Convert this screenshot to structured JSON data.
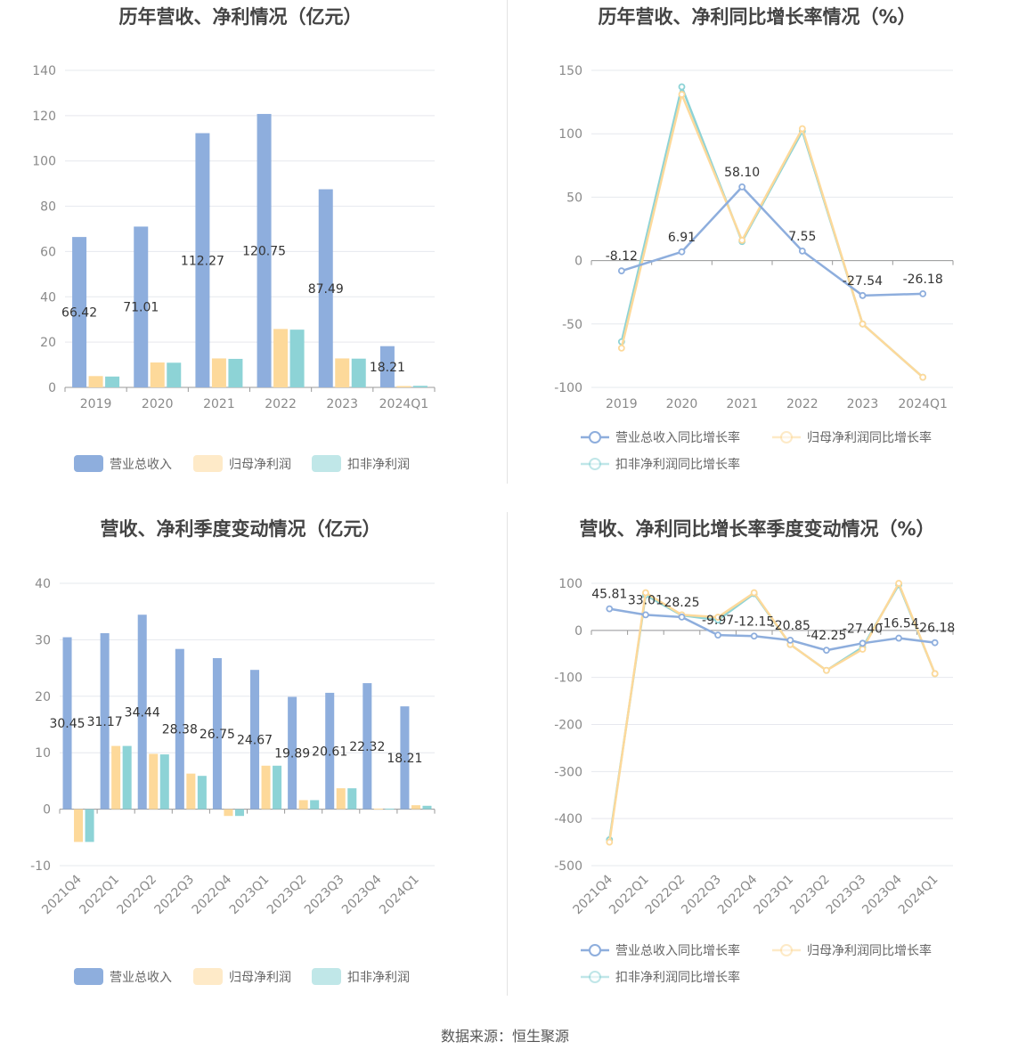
{
  "source": "数据来源：恒生聚源",
  "colors": {
    "revenue": "#8eaedd",
    "net": "#fdd99a",
    "net_ex": "#8dd3d6"
  },
  "chart_data": [
    {
      "id": "annual_amount",
      "type": "bar",
      "title": "历年营收、净利情况（亿元）",
      "categories": [
        "2019",
        "2020",
        "2021",
        "2022",
        "2023",
        "2024Q1"
      ],
      "ylim": [
        0,
        140
      ],
      "yticks": [
        0,
        20,
        40,
        60,
        80,
        100,
        120,
        140
      ],
      "grid": true,
      "legend_position": "bottom",
      "series": [
        {
          "name": "营业总收入",
          "values": [
            66.42,
            71.01,
            112.27,
            120.75,
            87.49,
            18.21
          ],
          "labeled": true
        },
        {
          "name": "归母净利润",
          "values": [
            5.0,
            11.0,
            12.8,
            25.8,
            12.8,
            0.6
          ],
          "labeled": false
        },
        {
          "name": "扣非净利润",
          "values": [
            4.8,
            10.9,
            12.6,
            25.5,
            12.7,
            0.7
          ],
          "labeled": false
        }
      ]
    },
    {
      "id": "annual_growth",
      "type": "line",
      "title": "历年营收、净利同比增长率情况（%）",
      "categories": [
        "2019",
        "2020",
        "2021",
        "2022",
        "2023",
        "2024Q1"
      ],
      "ylim": [
        -100,
        150
      ],
      "yticks": [
        -100,
        -50,
        0,
        50,
        100,
        150
      ],
      "grid": true,
      "legend_position": "bottom",
      "series": [
        {
          "name": "营业总收入同比增长率",
          "values": [
            -8.12,
            6.91,
            58.1,
            7.55,
            -27.54,
            -26.18
          ],
          "labels": [
            "-8.12",
            "6.91",
            "58.10",
            "7.55",
            "-27.54",
            "-26.18"
          ],
          "labeled": true
        },
        {
          "name": "归母净利润同比增长率",
          "values": [
            -69,
            131,
            16,
            104,
            -50,
            -92
          ],
          "labeled": false
        },
        {
          "name": "扣非净利润同比增长率",
          "values": [
            -64,
            137,
            15,
            102,
            -50,
            -92
          ],
          "labeled": false
        }
      ]
    },
    {
      "id": "quarterly_amount",
      "type": "bar",
      "title": "营收、净利季度变动情况（亿元）",
      "categories": [
        "2021Q4",
        "2022Q1",
        "2022Q2",
        "2022Q3",
        "2022Q4",
        "2023Q1",
        "2023Q2",
        "2023Q3",
        "2023Q4",
        "2024Q1"
      ],
      "ylim": [
        -10,
        40
      ],
      "yticks": [
        -10,
        0,
        10,
        20,
        30,
        40
      ],
      "grid": true,
      "legend_position": "bottom",
      "series": [
        {
          "name": "营业总收入",
          "values": [
            30.45,
            31.17,
            34.44,
            28.38,
            26.75,
            24.67,
            19.89,
            20.61,
            22.32,
            18.21
          ],
          "labeled": true
        },
        {
          "name": "归母净利润",
          "values": [
            -5.8,
            11.2,
            9.8,
            6.3,
            -1.2,
            7.7,
            1.6,
            3.7,
            0.1,
            0.7
          ],
          "labeled": false
        },
        {
          "name": "扣非净利润",
          "values": [
            -5.8,
            11.2,
            9.7,
            5.9,
            -1.2,
            7.7,
            1.6,
            3.7,
            0.1,
            0.6
          ],
          "labeled": false
        }
      ]
    },
    {
      "id": "quarterly_growth",
      "type": "line",
      "title": "营收、净利同比增长率季度变动情况（%）",
      "categories": [
        "2021Q4",
        "2022Q1",
        "2022Q2",
        "2022Q3",
        "2022Q4",
        "2023Q1",
        "2023Q2",
        "2023Q3",
        "2023Q4",
        "2024Q1"
      ],
      "ylim": [
        -500,
        100
      ],
      "yticks": [
        -500,
        -400,
        -300,
        -200,
        -100,
        0,
        100
      ],
      "grid": true,
      "legend_position": "bottom",
      "series": [
        {
          "name": "营业总收入同比增长率",
          "values": [
            45.81,
            33.01,
            28.25,
            -9.97,
            -12.15,
            -20.85,
            -42.25,
            -27.4,
            -16.54,
            -26.18
          ],
          "labels": [
            "45.81",
            "33.01",
            "28.25",
            "-9.97",
            "-12.15",
            "-20.85",
            "-42.25",
            "-27.40",
            "-16.54",
            "-26.18"
          ],
          "labeled": true
        },
        {
          "name": "归母净利润同比增长率",
          "values": [
            -450,
            80,
            33,
            28,
            80,
            -30,
            -85,
            -40,
            100,
            -92
          ],
          "labeled": false
        },
        {
          "name": "扣非净利润同比增长率",
          "values": [
            -445,
            75,
            32,
            22,
            78,
            -30,
            -85,
            -36,
            97,
            -92
          ],
          "labeled": false
        }
      ]
    }
  ]
}
